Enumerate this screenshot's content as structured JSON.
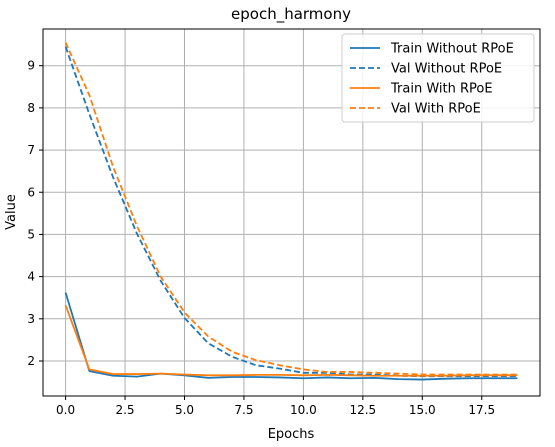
{
  "chart_data": {
    "type": "line",
    "title": "epoch_harmony",
    "xlabel": "Epochs",
    "ylabel": "Value",
    "xlim": [
      -0.95,
      19.95
    ],
    "ylim": [
      1.17,
      9.87
    ],
    "xticks": [
      0.0,
      2.5,
      5.0,
      7.5,
      10.0,
      12.5,
      15.0,
      17.5
    ],
    "xtick_labels": [
      "0.0",
      "2.5",
      "5.0",
      "7.5",
      "10.0",
      "12.5",
      "15.0",
      "17.5"
    ],
    "yticks": [
      2,
      3,
      4,
      5,
      6,
      7,
      8,
      9
    ],
    "ytick_labels": [
      "2",
      "3",
      "4",
      "5",
      "6",
      "7",
      "8",
      "9"
    ],
    "grid": true,
    "legend_position": "top-right",
    "x": [
      0,
      1,
      2,
      3,
      4,
      5,
      6,
      7,
      8,
      9,
      10,
      11,
      12,
      13,
      14,
      15,
      16,
      17,
      18,
      19
    ],
    "series": [
      {
        "name": "Train Without RPoE",
        "color": "#1f77b4",
        "linestyle": "solid",
        "values": [
          3.62,
          1.76,
          1.65,
          1.63,
          1.7,
          1.66,
          1.6,
          1.62,
          1.62,
          1.61,
          1.59,
          1.61,
          1.59,
          1.6,
          1.57,
          1.56,
          1.58,
          1.59,
          1.59,
          1.59
        ]
      },
      {
        "name": "Val Without RPoE",
        "color": "#1f77b4",
        "linestyle": "dashed",
        "values": [
          9.45,
          7.85,
          6.35,
          5.02,
          3.9,
          3.02,
          2.42,
          2.1,
          1.9,
          1.82,
          1.72,
          1.72,
          1.68,
          1.68,
          1.65,
          1.64,
          1.64,
          1.64,
          1.64,
          1.64
        ]
      },
      {
        "name": "Train With RPoE",
        "color": "#ff7f0e",
        "linestyle": "solid",
        "values": [
          3.32,
          1.8,
          1.69,
          1.69,
          1.7,
          1.68,
          1.66,
          1.66,
          1.67,
          1.67,
          1.66,
          1.67,
          1.66,
          1.65,
          1.65,
          1.65,
          1.65,
          1.66,
          1.66,
          1.66
        ]
      },
      {
        "name": "Val With RPoE",
        "color": "#ff7f0e",
        "linestyle": "dashed",
        "values": [
          9.55,
          8.3,
          6.6,
          5.2,
          4.0,
          3.15,
          2.58,
          2.22,
          2.02,
          1.9,
          1.8,
          1.74,
          1.74,
          1.72,
          1.7,
          1.68,
          1.68,
          1.68,
          1.68,
          1.68
        ]
      }
    ]
  }
}
